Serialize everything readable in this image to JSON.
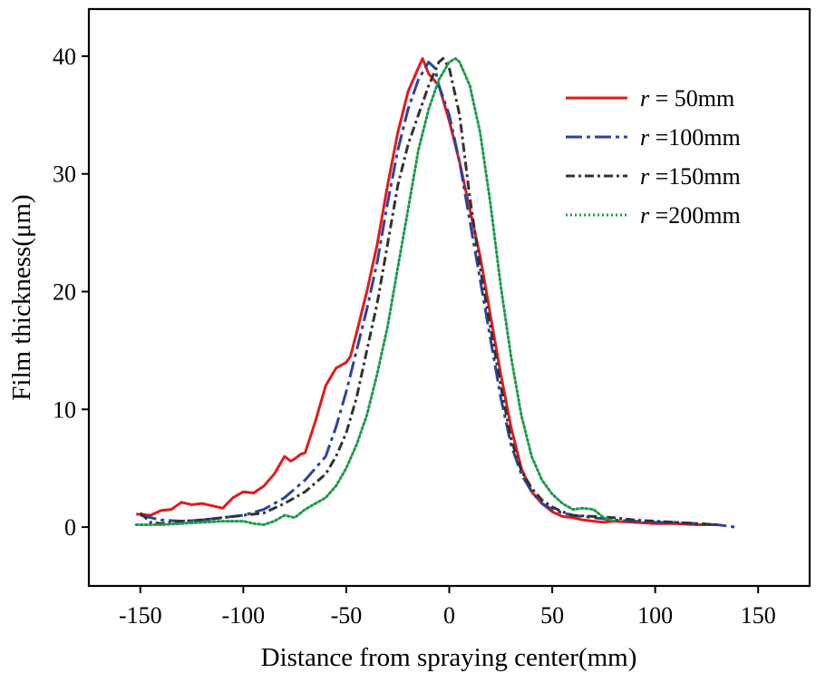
{
  "chart_data": {
    "type": "line",
    "title": "",
    "xlabel": "Distance from spraying center(mm)",
    "ylabel": "Film thickness(μm)",
    "xlim": [
      -175,
      175
    ],
    "ylim": [
      -5,
      44
    ],
    "xticks": [
      -150,
      -100,
      -50,
      0,
      50,
      100,
      150
    ],
    "yticks": [
      0,
      10,
      20,
      30,
      40
    ],
    "xtick_labels": [
      "-150",
      "-100",
      "-50",
      "0",
      "50",
      "100",
      "150"
    ],
    "ytick_labels": [
      "0",
      "10",
      "20",
      "30",
      "40"
    ],
    "legend_position": "top-right",
    "series": [
      {
        "name": "r = 50mm",
        "legend_var": "r",
        "legend_suffix": " = 50mm",
        "color": "#e31a1c",
        "style": "solid",
        "x": [
          -152,
          -145,
          -140,
          -135,
          -130,
          -125,
          -120,
          -115,
          -110,
          -105,
          -100,
          -95,
          -90,
          -85,
          -80,
          -77,
          -75,
          -72,
          -70,
          -65,
          -60,
          -55,
          -50,
          -48,
          -45,
          -40,
          -35,
          -30,
          -25,
          -20,
          -15,
          -13,
          -10,
          -5,
          0,
          5,
          10,
          15,
          20,
          25,
          30,
          35,
          40,
          45,
          50,
          55,
          60,
          65,
          70,
          75,
          80,
          90,
          100,
          110,
          120,
          130
        ],
        "y": [
          1.1,
          1.0,
          1.4,
          1.5,
          2.1,
          1.9,
          2.0,
          1.8,
          1.6,
          2.5,
          3.0,
          2.9,
          3.5,
          4.5,
          6.0,
          5.6,
          5.8,
          6.2,
          6.3,
          9.0,
          12.0,
          13.5,
          14.0,
          14.5,
          16.5,
          20.0,
          24.0,
          29.0,
          33.5,
          37.0,
          39.0,
          39.8,
          38.5,
          37.5,
          34.5,
          31.0,
          27.0,
          23.0,
          18.0,
          13.0,
          8.5,
          5.0,
          3.0,
          2.0,
          1.3,
          0.9,
          0.8,
          0.6,
          0.5,
          0.4,
          0.5,
          0.4,
          0.3,
          0.3,
          0.2,
          0.2
        ]
      },
      {
        "name": "r =100mm",
        "legend_var": "r",
        "legend_suffix": " =100mm",
        "color": "#2a44a0",
        "style": "dashdot-long",
        "x": [
          -150,
          -145,
          -140,
          -130,
          -120,
          -110,
          -100,
          -90,
          -80,
          -70,
          -65,
          -60,
          -55,
          -50,
          -45,
          -40,
          -35,
          -30,
          -25,
          -20,
          -15,
          -10,
          -7,
          -5,
          0,
          5,
          10,
          15,
          20,
          25,
          30,
          35,
          40,
          45,
          50,
          55,
          60,
          70,
          80,
          90,
          100,
          110,
          120,
          130,
          139
        ],
        "y": [
          1.0,
          0.8,
          0.6,
          0.5,
          0.6,
          0.8,
          1.0,
          1.5,
          2.5,
          4.0,
          5.0,
          6.0,
          8.5,
          11.5,
          15.0,
          18.5,
          22.5,
          27.5,
          32.0,
          35.5,
          38.0,
          39.5,
          39.0,
          37.5,
          35.0,
          31.0,
          26.0,
          21.0,
          16.0,
          11.0,
          7.0,
          4.5,
          3.0,
          2.0,
          1.5,
          1.2,
          1.0,
          0.8,
          0.6,
          0.5,
          0.4,
          0.4,
          0.3,
          0.2,
          0.0
        ]
      },
      {
        "name": "r =150mm",
        "legend_var": "r",
        "legend_suffix": " =150mm",
        "color": "#333333",
        "style": "dashdot",
        "x": [
          -150,
          -145,
          -140,
          -130,
          -120,
          -110,
          -100,
          -90,
          -80,
          -70,
          -60,
          -55,
          -50,
          -45,
          -40,
          -35,
          -30,
          -25,
          -20,
          -15,
          -10,
          -5,
          -3,
          0,
          5,
          10,
          15,
          20,
          25,
          30,
          35,
          40,
          45,
          50,
          55,
          60,
          70,
          80,
          90,
          100,
          110,
          120,
          130
        ],
        "y": [
          1.2,
          0.4,
          0.3,
          0.5,
          0.6,
          0.8,
          1.0,
          1.2,
          2.0,
          3.0,
          4.5,
          6.0,
          8.0,
          11.0,
          15.0,
          19.0,
          24.0,
          29.0,
          32.5,
          35.0,
          37.5,
          39.5,
          39.8,
          39.0,
          35.0,
          28.0,
          22.0,
          17.0,
          12.0,
          7.5,
          4.8,
          3.3,
          2.3,
          1.7,
          1.3,
          1.0,
          0.9,
          0.8,
          0.6,
          0.5,
          0.4,
          0.3,
          0.2
        ]
      },
      {
        "name": "r =200mm",
        "legend_var": "r",
        "legend_suffix": " =200mm",
        "color": "#1d9b4a",
        "style": "dotted",
        "x": [
          -152,
          -140,
          -130,
          -120,
          -110,
          -100,
          -95,
          -90,
          -85,
          -80,
          -75,
          -70,
          -65,
          -60,
          -55,
          -50,
          -45,
          -40,
          -35,
          -30,
          -25,
          -20,
          -15,
          -10,
          -5,
          0,
          3,
          5,
          10,
          15,
          20,
          25,
          30,
          35,
          40,
          45,
          50,
          55,
          60,
          65,
          70,
          75,
          80
        ],
        "y": [
          0.2,
          0.2,
          0.3,
          0.4,
          0.5,
          0.5,
          0.3,
          0.2,
          0.5,
          1.0,
          0.8,
          1.5,
          2.0,
          2.5,
          3.5,
          5.0,
          7.0,
          9.5,
          13.0,
          17.0,
          22.0,
          27.0,
          32.0,
          35.5,
          38.0,
          39.5,
          39.8,
          39.5,
          37.5,
          33.5,
          27.5,
          20.5,
          14.5,
          9.5,
          6.0,
          4.0,
          2.8,
          2.0,
          1.5,
          1.6,
          1.5,
          0.8,
          0.5
        ]
      }
    ]
  }
}
